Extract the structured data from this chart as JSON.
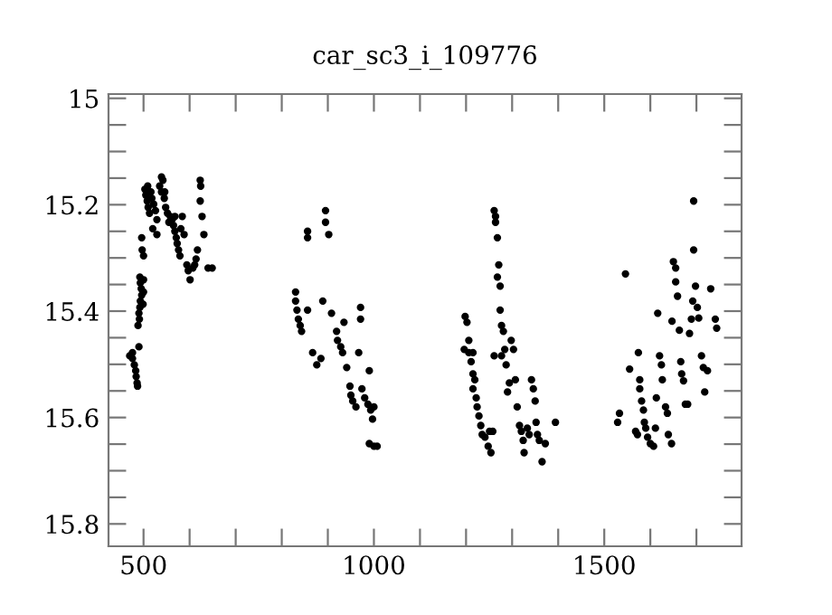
{
  "chart_data": {
    "type": "scatter",
    "title": "car_sc3_i_109776",
    "x": [
      476,
      476,
      480,
      483,
      484,
      486,
      487,
      490,
      470,
      492,
      493,
      495,
      496,
      493,
      492,
      490,
      491,
      488,
      500,
      500,
      499,
      496,
      497,
      500,
      503,
      505,
      508,
      510,
      513,
      509,
      516,
      518,
      522,
      526,
      529,
      520,
      529,
      535,
      539,
      542,
      545,
      548,
      552,
      555,
      558,
      546,
      539,
      562,
      565,
      568,
      571,
      573,
      576,
      579,
      581,
      584,
      568,
      588,
      594,
      597,
      601,
      607,
      611,
      614,
      617,
      623,
      624,
      623,
      627,
      631,
      640,
      649,
      856,
      856,
      895,
      895,
      902,
      830,
      830,
      833,
      836,
      840,
      843,
      856,
      867,
      876,
      885,
      889,
      908,
      919,
      921,
      928,
      932,
      935,
      941,
      948,
      950,
      954,
      961,
      967,
      971,
      971,
      974,
      980,
      987,
      990,
      993,
      997,
      1000,
      990,
      1000,
      1007,
      1198,
      1202,
      1196,
      1206,
      1215,
      1206,
      1211,
      1215,
      1219,
      1215,
      1222,
      1224,
      1228,
      1232,
      1235,
      1241,
      1248,
      1254,
      1251,
      1258,
      1261,
      1264,
      1264,
      1268,
      1271,
      1268,
      1274,
      1274,
      1277,
      1281,
      1284,
      1277,
      1287,
      1261,
      1294,
      1290,
      1298,
      1303,
      1307,
      1311,
      1316,
      1320,
      1324,
      1326,
      1333,
      1337,
      1342,
      1346,
      1350,
      1352,
      1355,
      1359,
      1365,
      1372,
      1394,
      1529,
      1533,
      1546,
      1555,
      1568,
      1572,
      1574,
      1577,
      1577,
      1581,
      1585,
      1587,
      1590,
      1594,
      1600,
      1607,
      1611,
      1613,
      1616,
      1620,
      1624,
      1626,
      1633,
      1637,
      1639,
      1646,
      1647,
      1650,
      1655,
      1655,
      1659,
      1663,
      1666,
      1668,
      1672,
      1676,
      1681,
      1685,
      1689,
      1692,
      1694,
      1694,
      1698,
      1702,
      1705,
      1711,
      1715,
      1718,
      1724,
      1731,
      1741,
      1744
    ],
    "values": [
      15.478,
      15.489,
      15.501,
      15.512,
      15.523,
      15.535,
      15.541,
      15.467,
      15.484,
      15.336,
      15.347,
      15.358,
      15.37,
      15.381,
      15.393,
      15.404,
      15.415,
      15.427,
      15.341,
      15.364,
      15.387,
      15.262,
      15.285,
      15.296,
      15.171,
      15.182,
      15.193,
      15.205,
      15.216,
      15.165,
      15.176,
      15.188,
      15.199,
      15.211,
      15.228,
      15.245,
      15.256,
      15.165,
      15.176,
      15.154,
      15.188,
      15.205,
      15.216,
      15.233,
      15.222,
      15.176,
      15.148,
      15.228,
      15.239,
      15.25,
      15.262,
      15.273,
      15.285,
      15.296,
      15.245,
      15.222,
      15.222,
      15.256,
      15.313,
      15.324,
      15.341,
      15.319,
      15.313,
      15.302,
      15.285,
      15.154,
      15.165,
      15.193,
      15.222,
      15.256,
      15.319,
      15.319,
      15.25,
      15.262,
      15.211,
      15.233,
      15.256,
      15.364,
      15.381,
      15.398,
      15.415,
      15.427,
      15.438,
      15.398,
      15.478,
      15.501,
      15.489,
      15.381,
      15.404,
      15.438,
      15.455,
      15.467,
      15.478,
      15.421,
      15.506,
      15.541,
      15.558,
      15.569,
      15.58,
      15.478,
      15.393,
      15.415,
      15.546,
      15.563,
      15.575,
      15.512,
      15.586,
      15.603,
      15.58,
      15.649,
      15.654,
      15.654,
      15.41,
      15.421,
      15.472,
      15.478,
      15.478,
      15.455,
      15.495,
      15.518,
      15.529,
      15.546,
      15.563,
      15.58,
      15.597,
      15.615,
      15.632,
      15.637,
      15.654,
      15.666,
      15.626,
      15.626,
      15.211,
      15.222,
      15.233,
      15.262,
      15.313,
      15.336,
      15.353,
      15.398,
      15.427,
      15.438,
      15.472,
      15.484,
      15.501,
      15.484,
      15.535,
      15.552,
      15.455,
      15.472,
      15.529,
      15.58,
      15.615,
      15.626,
      15.643,
      15.666,
      15.62,
      15.632,
      15.529,
      15.546,
      15.569,
      15.609,
      15.632,
      15.643,
      15.683,
      15.649,
      15.609,
      15.609,
      15.592,
      15.33,
      15.509,
      15.626,
      15.632,
      15.478,
      15.529,
      15.546,
      15.569,
      15.586,
      15.609,
      15.62,
      15.637,
      15.649,
      15.654,
      15.62,
      15.563,
      15.404,
      15.484,
      15.501,
      15.529,
      15.58,
      15.592,
      15.632,
      15.649,
      15.419,
      15.307,
      15.319,
      15.345,
      15.372,
      15.436,
      15.495,
      15.518,
      15.531,
      15.575,
      15.575,
      15.442,
      15.415,
      15.381,
      15.285,
      15.193,
      15.353,
      15.393,
      15.413,
      15.484,
      15.506,
      15.552,
      15.512,
      15.358,
      15.415,
      15.432
    ],
    "color": "#000000",
    "marker": "circle",
    "grid": false,
    "legend": false,
    "xlim": [
      424,
      1798
    ],
    "ylim": [
      15.842,
      14.992
    ],
    "xticks": [
      500,
      {
        "value": 600,
        "label": null
      },
      {
        "value": 700,
        "label": null
      },
      {
        "value": 800,
        "label": null
      },
      {
        "value": 900,
        "label": null
      },
      1000,
      {
        "value": 1100,
        "label": null
      },
      {
        "value": 1200,
        "label": null
      },
      {
        "value": 1300,
        "label": null
      },
      {
        "value": 1400,
        "label": null
      },
      1500,
      {
        "value": 1600,
        "label": null
      },
      {
        "value": 1700,
        "label": null
      }
    ],
    "yticks": [
      15,
      {
        "value": 15.05,
        "label": null
      },
      {
        "value": 15.1,
        "label": null
      },
      {
        "value": 15.15,
        "label": null
      },
      15.2,
      {
        "value": 15.25,
        "label": null
      },
      {
        "value": 15.3,
        "label": null
      },
      {
        "value": 15.35,
        "label": null
      },
      15.4,
      {
        "value": 15.45,
        "label": null
      },
      {
        "value": 15.5,
        "label": null
      },
      {
        "value": 15.55,
        "label": null
      },
      15.6,
      {
        "value": 15.65,
        "label": null
      },
      {
        "value": 15.7,
        "label": null
      },
      {
        "value": 15.75,
        "label": null
      },
      15.8
    ]
  }
}
